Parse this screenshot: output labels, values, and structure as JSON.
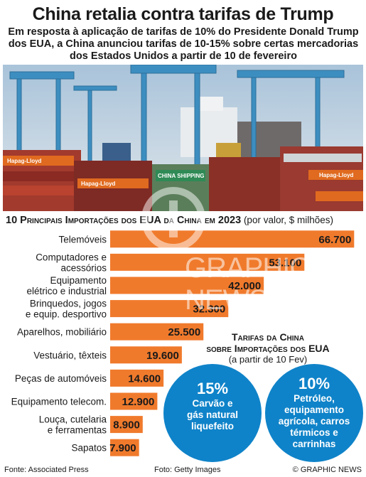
{
  "header": {
    "title": "China retalia contra tarifas de Trump",
    "subtitle": "Em resposta à aplicação de tarifas de 10% do Presidente Donald Trump dos EUA, a China anunciou tarifas de 10-15% sobre certas mercadorias dos Estados Unidos a partir de 10 de fevereiro"
  },
  "photo": {
    "container_texts": [
      "Hapag-Lloyd",
      "CHINA SHIPPING",
      "Hapag-Lloyd",
      "Hapag-Lloyd"
    ]
  },
  "chart_heading": {
    "main": "10 Principais Importações dos EUA da China em 2023",
    "unit": "(por valor, $ milhões)"
  },
  "chart_data": {
    "type": "bar",
    "orientation": "horizontal",
    "title": "10 Principais Importações dos EUA da China em 2023",
    "subtitle": "(por valor, $ milhões)",
    "categories": [
      [
        "Telemóveis"
      ],
      [
        "Computadores e",
        "acessórios"
      ],
      [
        "Equipamento",
        "elétrico e industrial"
      ],
      [
        "Brinquedos, jogos",
        "e equip. desportivo"
      ],
      [
        "Aparelhos, mobiliário"
      ],
      [
        "Vestuário, têxteis"
      ],
      [
        "Peças de automóveis"
      ],
      [
        "Equipamento telecom."
      ],
      [
        "Louça, cutelaria",
        "e ferramentas"
      ],
      [
        "Sapatos"
      ]
    ],
    "values": [
      66700,
      53100,
      42000,
      32300,
      25500,
      19600,
      14600,
      12900,
      8900,
      7900
    ],
    "value_labels": [
      "66.700",
      "53.100",
      "42.000",
      "32.300",
      "25.500",
      "19.600",
      "14.600",
      "12.900",
      "8.900",
      "7.900"
    ],
    "xlim": [
      0,
      68000
    ],
    "bar_color": "#f07a2c",
    "grid": false,
    "axis_ticks": false
  },
  "tariffs": {
    "title_line1": "Tarifas da China",
    "title_line2": "sobre Importações dos EUA",
    "title_line3": "(a partir de 10 Fev)",
    "items": [
      {
        "pct": "15%",
        "desc": [
          "Carvão e",
          "gás natural",
          "liquefeito"
        ]
      },
      {
        "pct": "10%",
        "desc": [
          "Petróleo,",
          "equipamento",
          "agrícola, carros",
          "térmicos e",
          "carrinhas"
        ]
      }
    ],
    "bubble_color": "#0f83c9"
  },
  "footer": {
    "source": "Fonte: Associated Press",
    "photo_credit": "Foto: Getty Images",
    "copyright": "© GRAPHIC NEWS"
  },
  "watermark": {
    "text": "GRAPHIC NEWS"
  }
}
